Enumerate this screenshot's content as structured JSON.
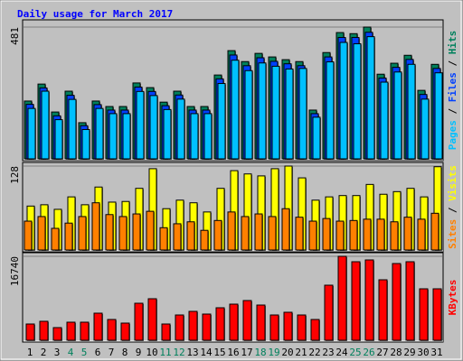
{
  "chart_data": [
    {
      "type": "bar",
      "title": "Daily usage for March 2017",
      "legend_separator": " / ",
      "ylim": [
        0,
        481
      ],
      "yticks": [
        481
      ],
      "grid": true,
      "series": [
        {
          "name": "Pages",
          "color": "#00c0ff",
          "values": [
            184,
            247,
            143,
            217,
            107,
            184,
            165,
            165,
            246,
            231,
            180,
            218,
            165,
            165,
            275,
            360,
            322,
            350,
            338,
            328,
            330,
            152,
            354,
            425,
            420,
            446,
            280,
            317,
            345,
            218,
            314
          ]
        },
        {
          "name": "Files",
          "color": "#0040ff",
          "values": [
            199,
            259,
            157,
            232,
            121,
            198,
            178,
            178,
            262,
            246,
            194,
            233,
            178,
            178,
            292,
            379,
            340,
            369,
            356,
            347,
            340,
            165,
            372,
            443,
            443,
            462,
            295,
            334,
            363,
            235,
            330
          ]
        },
        {
          "name": "Hits",
          "color": "#00805c",
          "values": [
            211,
            273,
            171,
            247,
            132,
            211,
            191,
            191,
            277,
            260,
            207,
            247,
            191,
            191,
            306,
            395,
            355,
            385,
            372,
            362,
            355,
            178,
            388,
            461,
            457,
            481,
            309,
            349,
            378,
            250,
            345
          ]
        }
      ]
    },
    {
      "type": "bar",
      "legend_separator": " / ",
      "ylim": [
        0,
        128
      ],
      "yticks": [
        128
      ],
      "grid": true,
      "series": [
        {
          "name": "Sites",
          "color": "#ff8000",
          "values": [
            44,
            51,
            33,
            41,
            51,
            72,
            54,
            51,
            55,
            59,
            34,
            40,
            43,
            30,
            45,
            58,
            51,
            55,
            51,
            63,
            50,
            44,
            48,
            44,
            45,
            47,
            47,
            43,
            50,
            47,
            56
          ]
        },
        {
          "name": "Visits",
          "color": "#ffff00",
          "values": [
            67,
            69,
            62,
            81,
            69,
            96,
            73,
            74,
            94,
            124,
            63,
            76,
            72,
            58,
            94,
            121,
            116,
            113,
            124,
            128,
            110,
            76,
            81,
            83,
            83,
            100,
            85,
            89,
            94,
            81,
            127
          ]
        }
      ]
    },
    {
      "type": "bar",
      "ylim": [
        0,
        16740
      ],
      "yticks": [
        16740
      ],
      "grid": true,
      "series": [
        {
          "name": "KBytes",
          "color": "#ff0000",
          "values": [
            3240,
            3780,
            2520,
            3600,
            3600,
            5400,
            4140,
            3420,
            7380,
            8280,
            3240,
            5040,
            5760,
            5220,
            6480,
            7200,
            7920,
            7020,
            5040,
            5580,
            5040,
            4140,
            10980,
            16740,
            15660,
            16020,
            12060,
            15300,
            15660,
            10260,
            10260
          ]
        }
      ],
      "categories": [
        "1",
        "2",
        "3",
        "4",
        "5",
        "6",
        "7",
        "8",
        "9",
        "10",
        "11",
        "12",
        "13",
        "14",
        "15",
        "16",
        "17",
        "18",
        "19",
        "20",
        "21",
        "22",
        "23",
        "24",
        "25",
        "26",
        "27",
        "28",
        "29",
        "30",
        "31"
      ],
      "category_label_colors": [
        "#000000",
        "#000000",
        "#000000",
        "#00805c",
        "#00805c",
        "#000000",
        "#000000",
        "#000000",
        "#000000",
        "#000000",
        "#00805c",
        "#00805c",
        "#000000",
        "#000000",
        "#000000",
        "#000000",
        "#000000",
        "#00805c",
        "#00805c",
        "#000000",
        "#000000",
        "#000000",
        "#000000",
        "#000000",
        "#00805c",
        "#00805c",
        "#000000",
        "#000000",
        "#000000",
        "#000000",
        "#000000"
      ]
    }
  ]
}
